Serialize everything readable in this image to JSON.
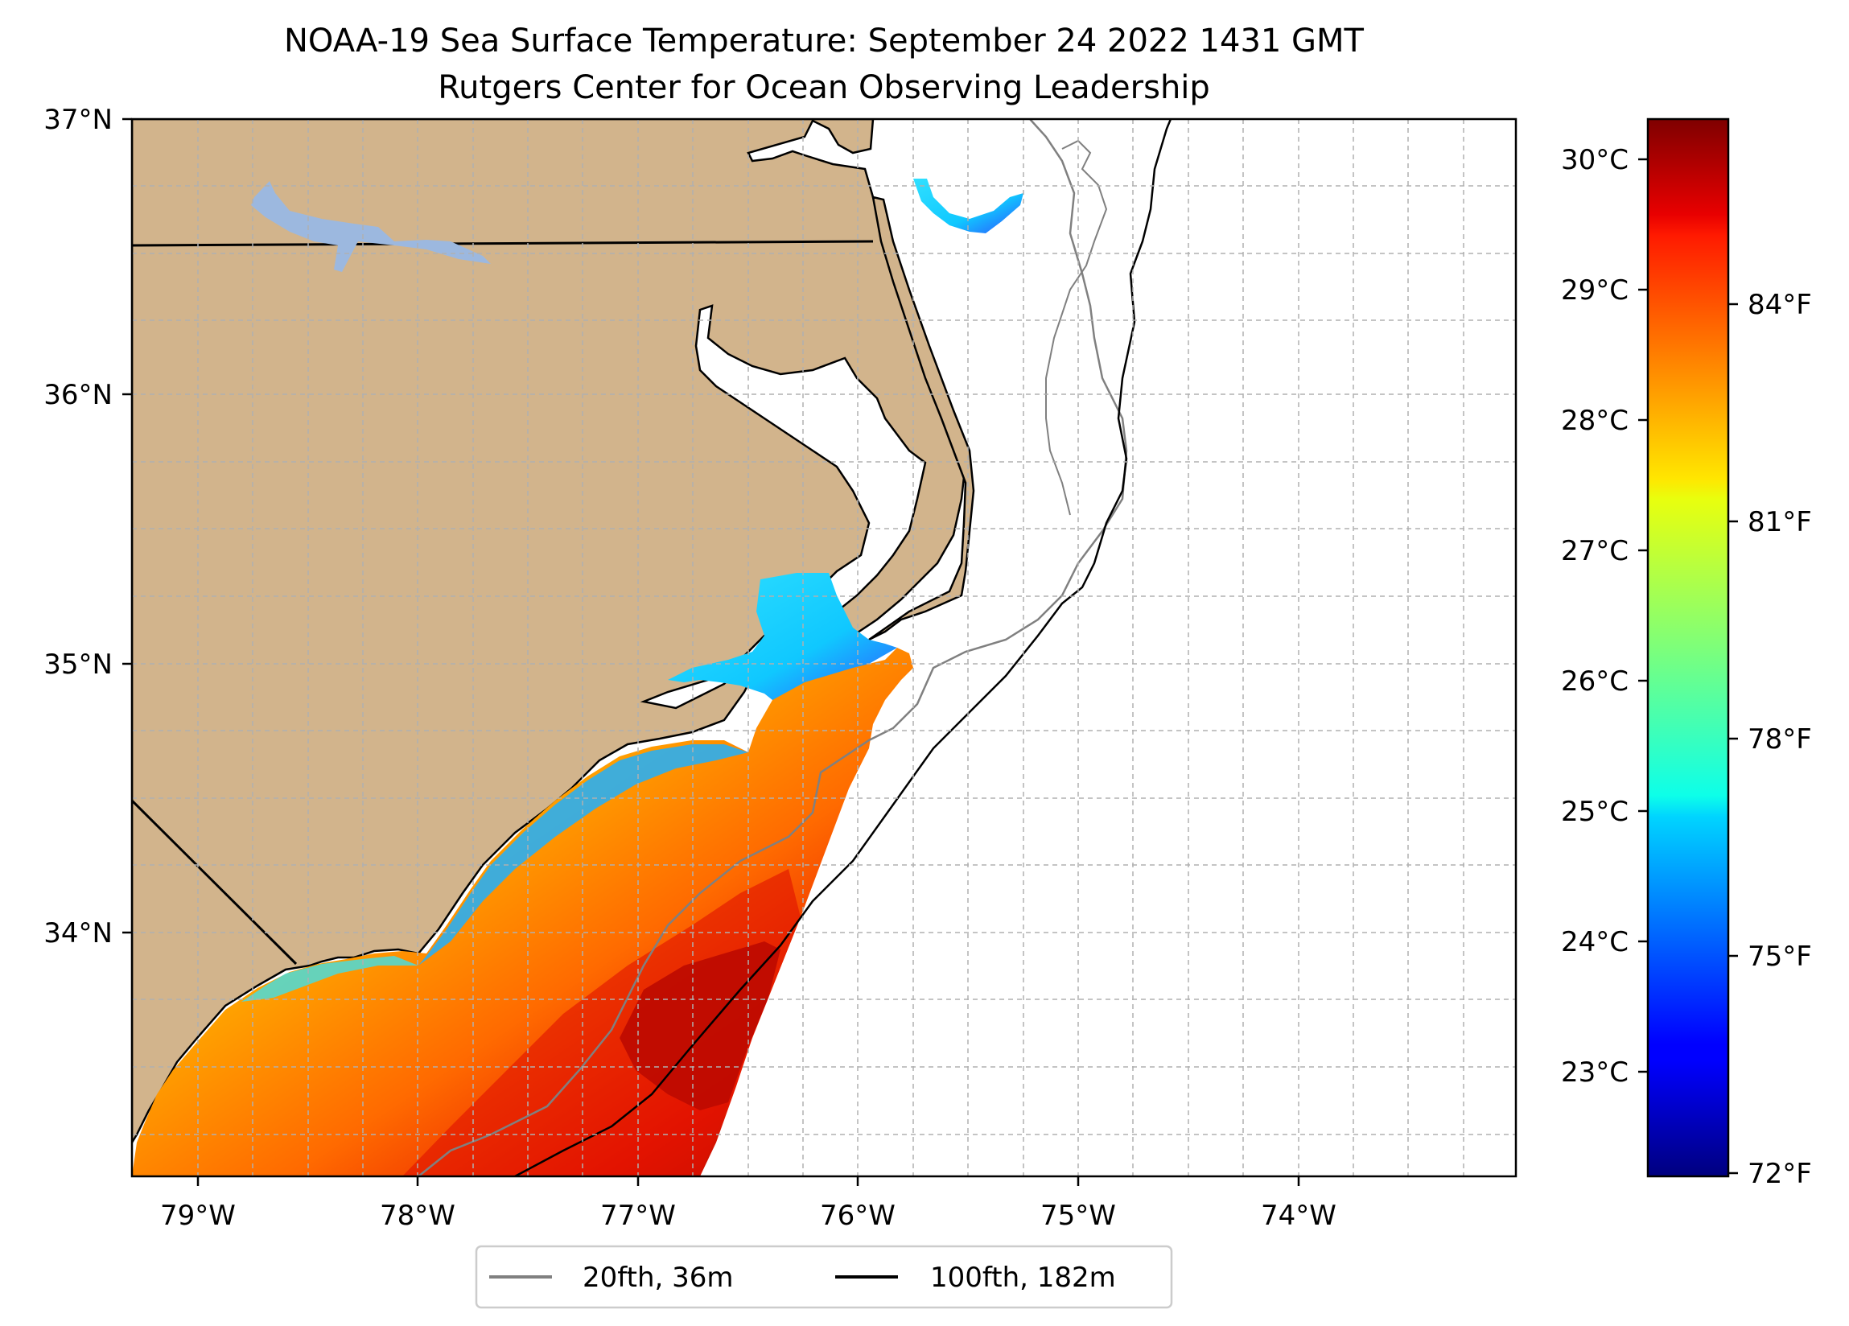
{
  "figure": {
    "title_line1": "NOAA-19 Sea Surface Temperature: September 24 2022 1431 GMT",
    "title_line2": "Rutgers Center for Ocean Observing Leadership"
  },
  "map": {
    "region": "North Carolina coast",
    "lon_range": [
      -79.3,
      -73.2
    ],
    "lat_range": [
      33.1,
      37.0
    ],
    "lat_ticks": [
      {
        "value": 37,
        "label": "37°N"
      },
      {
        "value": 36,
        "label": "36°N"
      },
      {
        "value": 35,
        "label": "35°N"
      },
      {
        "value": 34,
        "label": "34°N"
      }
    ],
    "lon_ticks": [
      {
        "value": -79,
        "label": "79°W"
      },
      {
        "value": -78,
        "label": "78°W"
      },
      {
        "value": -77,
        "label": "77°W"
      },
      {
        "value": -76,
        "label": "76°W"
      },
      {
        "value": -75,
        "label": "75°W"
      },
      {
        "value": -74,
        "label": "74°W"
      }
    ],
    "colors": {
      "land": "#d2b48c",
      "lakes": "#9cb8df",
      "ocean_nodata": "#ffffff",
      "grid": "#b0b0b0",
      "isobath_20": "#808080",
      "isobath_100": "#000000"
    },
    "grid": true
  },
  "colorbar": {
    "colormap": "jet",
    "celsius_ticks": [
      {
        "value": 30,
        "label": "30°C"
      },
      {
        "value": 29,
        "label": "29°C"
      },
      {
        "value": 28,
        "label": "28°C"
      },
      {
        "value": 27,
        "label": "27°C"
      },
      {
        "value": 26,
        "label": "26°C"
      },
      {
        "value": 25,
        "label": "25°C"
      },
      {
        "value": 24,
        "label": "24°C"
      },
      {
        "value": 23,
        "label": "23°C"
      }
    ],
    "fahrenheit_ticks": [
      {
        "value": 84,
        "label": "84°F"
      },
      {
        "value": 81,
        "label": "81°F"
      },
      {
        "value": 78,
        "label": "78°F"
      },
      {
        "value": 75,
        "label": "75°F"
      },
      {
        "value": 72,
        "label": "72°F"
      }
    ]
  },
  "legend": {
    "items": [
      {
        "label": "20fth, 36m",
        "color": "#808080"
      },
      {
        "label": "100fth, 182m",
        "color": "#000000"
      }
    ]
  }
}
